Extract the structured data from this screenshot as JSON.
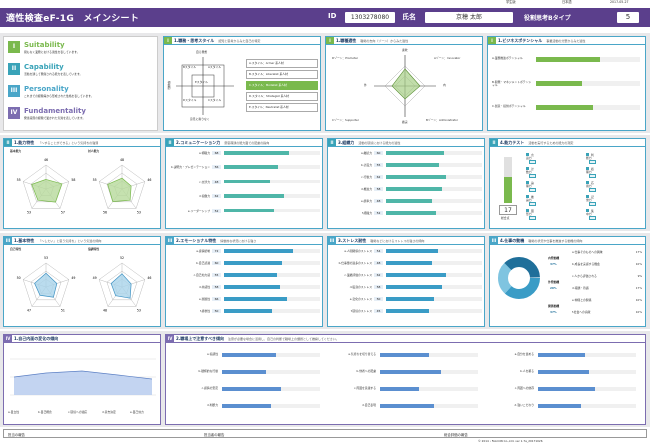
{
  "top": {
    "right_label": "学生版",
    "lang": "日本語",
    "date": "2017-05-27"
  },
  "header": {
    "title": "適性検査eF-1G　メインシート",
    "id_label": "ID",
    "id_value": "1303278080",
    "name_label": "氏名",
    "name_value": "京穂 太郎",
    "type_label": "役割思考Bタイプ",
    "type_value": "5"
  },
  "legend": {
    "items": [
      {
        "num": "I",
        "title": "Suitability",
        "desc": "間もなく業務における適性を表しています。",
        "color": "#7ab94d"
      },
      {
        "num": "II",
        "title": "Capability",
        "desc": "活動を通して発揮される能力を表しています。",
        "color": "#39a3b8"
      },
      {
        "num": "III",
        "title": "Personality",
        "desc": "これまでの経験等から形成された性格を表しています。",
        "color": "#4aa6c8"
      },
      {
        "num": "IV",
        "title": "Fundamentality",
        "desc": "発達段階の経験で築かれた気質を表しています。",
        "color": "#7c6db0"
      }
    ]
  },
  "p1": {
    "title": "1.職務・思考スタイル",
    "sub": "認知と思考からみた自己の特定",
    "chart_top": "自ら発想",
    "chart_bottom": "意見に寄りなく",
    "chart_left": "傾聴的",
    "styles": [
      "A.スタイル：Armer 系人材",
      "B.スタイル：Liberalist 系人材",
      "C.スタイル：Modelist 系人材",
      "D.スタイル：Strategist 系人材",
      "E.スタイル：Neutralist 系人材"
    ],
    "box_labels": [
      "Bスタイル",
      "Aスタイル",
      "Eスタイル",
      "Dスタイル",
      "Cスタイル"
    ]
  },
  "p2": {
    "title": "1.職種適性",
    "sub": "職場の志向（ゾーン）からみた適性",
    "labels": [
      "Dゾーン：Promoter",
      "Aゾーン：Innovator",
      "Cゾーン：Supporter",
      "Bゾーン：Administrator"
    ],
    "axis": [
      "外",
      "内",
      "柔軟",
      "確実"
    ]
  },
  "p3": {
    "title": "1.ビジネスポテンシャル",
    "sub": "事業活動の分野からみた適性",
    "rows": [
      {
        "label": "A.業務推進ポテンシャル",
        "value": 0.62
      },
      {
        "label": "B.開発・マネジメントポテンシャル",
        "value": 0.44
      },
      {
        "label": "C.創意・提供ポテンシャル",
        "value": 0.55
      }
    ]
  },
  "p4": {
    "title": "1.能力特性",
    "sub": "「～することができる」という気持ちの強弱",
    "left_title": "基本能力",
    "right_title": "対人能力",
    "left_vals": [
      "46",
      "58",
      "57",
      "53",
      "55"
    ],
    "right_vals": [
      "48",
      "46",
      "53",
      "56",
      "55"
    ]
  },
  "p5": {
    "title": "2.コミュニケーション力",
    "sub": "意思疎通の能力面での配慮の指向",
    "rows": [
      {
        "label": "a.傾聴力",
        "value": "68",
        "fill": 0.68
      },
      {
        "label": "b.説明力・プレゼンテーション",
        "value": "56",
        "fill": 0.56
      },
      {
        "label": "c.交渉力",
        "value": "48",
        "fill": 0.48
      },
      {
        "label": "d.協働力",
        "value": "62",
        "fill": 0.62
      },
      {
        "label": "e.リーダーシップ",
        "value": "52",
        "fill": 0.52
      }
    ]
  },
  "p6": {
    "title": "3.組織力",
    "sub": "活動の環境における能力の適性",
    "rows": [
      {
        "label": "a.継続力",
        "value": "60",
        "fill": 0.6
      },
      {
        "label": "b.計画力",
        "value": "55",
        "fill": 0.55
      },
      {
        "label": "c.行動力",
        "value": "62",
        "fill": 0.62
      },
      {
        "label": "d.推進力",
        "value": "58",
        "fill": 0.58
      },
      {
        "label": "e.統率力",
        "value": "48",
        "fill": 0.48
      },
      {
        "label": "f.組織力",
        "value": "52",
        "fill": 0.52
      }
    ]
  },
  "p7": {
    "title": "4.能力テスト",
    "sub": "活動を実行するための能力の測定",
    "left_labels": [
      "言語力",
      "計数力",
      "論理力",
      "推論力",
      "図形力"
    ],
    "right_labels": [
      "判断力",
      "処理力",
      "応用力",
      "記憶力",
      "集中力"
    ],
    "big_value": "17",
    "big_label": "総合点"
  },
  "p8": {
    "title": "1.基本特性",
    "sub": "「～したい」と思う気持ち」という気質の傾向",
    "left_title": "自己特性",
    "right_title": "協調特性",
    "left_vals": [
      "53",
      "49",
      "51",
      "47",
      "50"
    ],
    "right_vals": [
      "52",
      "46",
      "53",
      "48",
      "49"
    ]
  },
  "p9": {
    "title": "2.エモーショナル特性",
    "sub": "情動的な状況における強さ",
    "rows": [
      {
        "label": "a.感情統制",
        "value": "72",
        "fill": 0.72
      },
      {
        "label": "b.自己認識",
        "value": "60",
        "fill": 0.6
      },
      {
        "label": "c.自己効力感",
        "value": "55",
        "fill": 0.55
      },
      {
        "label": "d.共感性",
        "value": "58",
        "fill": 0.58
      },
      {
        "label": "e.楽観性",
        "value": "66",
        "fill": 0.66
      },
      {
        "label": "f.柔軟性",
        "value": "50",
        "fill": 0.5
      }
    ]
  },
  "p10": {
    "title": "3.ストレス耐性",
    "sub": "職場などにおけるストレスの強さの傾向",
    "rows": [
      {
        "label": "a.人間関係のストレス",
        "value": "54",
        "fill": 0.54
      },
      {
        "label": "b.仕事量の過多のストレス",
        "value": "48",
        "fill": 0.48
      },
      {
        "label": "c.業績評価のストレス",
        "value": "62",
        "fill": 0.62
      },
      {
        "label": "d.役割のストレス",
        "value": "58",
        "fill": 0.58
      },
      {
        "label": "e.変化のストレス",
        "value": "50",
        "fill": 0.5
      },
      {
        "label": "f.環境のストレス",
        "value": "45",
        "fill": 0.45
      }
    ]
  },
  "p11": {
    "title": "4.仕事の動機",
    "sub": "職場の状況や仕事を推進する動機の傾向",
    "groups": [
      {
        "label": "内発動機",
        "value": "37%"
      },
      {
        "label": "外発動機",
        "value": "26%"
      },
      {
        "label": "関係動機",
        "value": "37%"
      }
    ],
    "rows": [
      {
        "label": "a.仕事そのものへの興味",
        "value": "17%"
      },
      {
        "label": "b.成長を実感する機会",
        "value": "10%"
      },
      {
        "label": "c.人から評価される",
        "value": "9%"
      },
      {
        "label": "d.報酬・待遇",
        "value": "17%"
      },
      {
        "label": "e.仲間との関係",
        "value": "10%"
      },
      {
        "label": "f.社会への貢献",
        "value": "10%"
      }
    ]
  },
  "p12": {
    "title": "1.自己内面の変化の傾向",
    "sub": "",
    "x_labels": [
      "a.自立性",
      "b.自己概念",
      "c.環境への適応",
      "d.意志決定",
      "e.自己効力"
    ]
  },
  "p13": {
    "title": "2.職場上で注意すべき傾向",
    "sub": "注意が必要な場合に活用し、自己の判断で職場上の課題として推察してください。",
    "col1": [
      "a.協調性",
      "b.積極的な行動",
      "c.感情の安定",
      "d.判断力"
    ],
    "col2": [
      "a.気持ちを切り替える",
      "b.他者への配慮",
      "c.周囲を意識する",
      "d.自己表現"
    ],
    "col3": [
      "a.自分を責める",
      "b.人を頼る",
      "c.周囲への依存",
      "d.強いこだわり"
    ]
  },
  "footer": {
    "labels": [
      "担当の報告",
      "担当者の報告",
      "総合評価の報告"
    ],
    "copy": "© 2014 ‹ FALCON Co.,Ltd.   ver 1.7a_20171026"
  }
}
